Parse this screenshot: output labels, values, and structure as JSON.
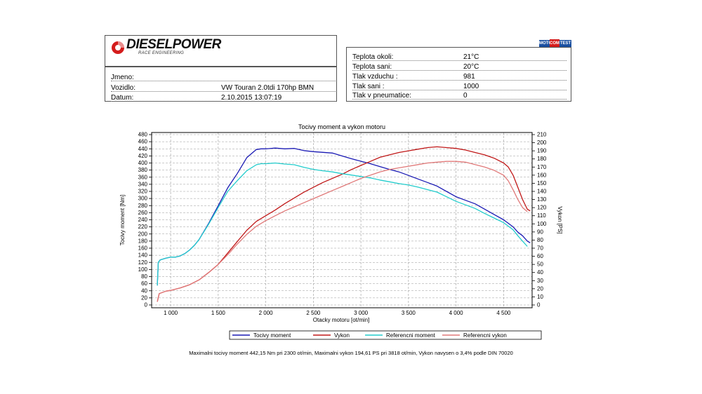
{
  "header": {
    "logo_text": "DIESELPOWER",
    "logo_sub": "RACE ENGINEERING",
    "badge": {
      "left": "MOTO",
      "mid": "COM",
      "right": "TEST"
    }
  },
  "vehicle": {
    "rows": [
      {
        "label": "Jmeno:",
        "value": ""
      },
      {
        "label": "Vozidlo:",
        "value": "VW Touran 2.0tdi 170hp BMN"
      },
      {
        "label": "Datum:",
        "value": "2.10.2015 13:07:19"
      }
    ]
  },
  "conditions": {
    "rows": [
      {
        "label": "Teplota okoli:",
        "value": "21°C"
      },
      {
        "label": "Teplota sani:",
        "value": "20°C"
      },
      {
        "label": "Tlak vzduchu :",
        "value": "981"
      },
      {
        "label": "Tlak sani :",
        "value": "1000"
      },
      {
        "label": "Tlak v pneumatice:",
        "value": "0"
      }
    ]
  },
  "chart_data": {
    "type": "line",
    "title": "Tocivy moment a vykon motoru",
    "xlabel": "Otacky motoru [ot/min]",
    "ylabel": "Tocivy moment [Nm]",
    "y2label": "Vykon [PS]",
    "xlim": [
      800,
      4800
    ],
    "ylim": [
      0,
      480
    ],
    "y2lim": [
      0,
      210
    ],
    "xticks": [
      1000,
      1500,
      2000,
      2500,
      3000,
      3500,
      4000,
      4500
    ],
    "xtick_labels": [
      "1 000",
      "1 500",
      "2 000",
      "2 500",
      "3 000",
      "3 500",
      "4 000",
      "4 500"
    ],
    "yticks": [
      0,
      20,
      40,
      60,
      80,
      100,
      120,
      140,
      160,
      180,
      200,
      220,
      240,
      260,
      280,
      300,
      320,
      340,
      360,
      380,
      400,
      420,
      440,
      460,
      480
    ],
    "y2ticks": [
      0,
      10,
      20,
      30,
      40,
      50,
      60,
      70,
      80,
      90,
      100,
      110,
      120,
      130,
      140,
      150,
      160,
      170,
      180,
      190,
      200,
      210
    ],
    "grid": true,
    "legend_position": "bottom",
    "series": [
      {
        "name": "Tocivy moment",
        "axis": "left",
        "color": "#1a1ab4",
        "x": [
          860,
          870,
          890,
          950,
          1000,
          1050,
          1100,
          1150,
          1200,
          1250,
          1300,
          1400,
          1500,
          1600,
          1700,
          1800,
          1900,
          1950,
          2000,
          2100,
          2200,
          2300,
          2400,
          2500,
          2600,
          2700,
          2800,
          2900,
          3000,
          3100,
          3200,
          3300,
          3400,
          3500,
          3600,
          3700,
          3800,
          3900,
          4000,
          4100,
          4200,
          4300,
          4400,
          4500,
          4600,
          4650,
          4700,
          4750,
          4780
        ],
        "y": [
          55,
          120,
          127,
          132,
          135,
          135,
          138,
          145,
          155,
          168,
          185,
          230,
          280,
          330,
          370,
          415,
          438,
          440,
          440,
          442,
          440,
          441,
          435,
          432,
          430,
          428,
          420,
          412,
          405,
          398,
          390,
          382,
          375,
          365,
          355,
          345,
          335,
          320,
          305,
          295,
          285,
          270,
          255,
          240,
          220,
          205,
          195,
          180,
          175
        ]
      },
      {
        "name": "Vykon",
        "axis": "right",
        "color": "#c01818",
        "x": [
          860,
          880,
          950,
          1000,
          1100,
          1200,
          1300,
          1400,
          1500,
          1600,
          1700,
          1800,
          1900,
          2000,
          2100,
          2200,
          2300,
          2400,
          2500,
          2600,
          2700,
          2800,
          2900,
          3000,
          3100,
          3200,
          3300,
          3400,
          3500,
          3600,
          3700,
          3800,
          3900,
          4000,
          4100,
          4200,
          4300,
          4400,
          4500,
          4550,
          4600,
          4650,
          4700,
          4750,
          4780
        ],
        "y": [
          4,
          14,
          17,
          18,
          21,
          25,
          31,
          40,
          50,
          64,
          78,
          92,
          103,
          110,
          117,
          125,
          132,
          139,
          145,
          151,
          156,
          161,
          167,
          172,
          177,
          182,
          185,
          188,
          190,
          192,
          194,
          195,
          194,
          193,
          191,
          188,
          185,
          181,
          175,
          170,
          160,
          145,
          130,
          118,
          116
        ]
      },
      {
        "name": "Referencni moment",
        "axis": "left",
        "color": "#22cccc",
        "x": [
          860,
          870,
          890,
          950,
          1000,
          1050,
          1100,
          1150,
          1200,
          1250,
          1300,
          1400,
          1500,
          1600,
          1700,
          1800,
          1900,
          1950,
          2000,
          2100,
          2200,
          2300,
          2400,
          2500,
          2600,
          2700,
          2800,
          2900,
          3000,
          3100,
          3200,
          3300,
          3400,
          3500,
          3600,
          3700,
          3800,
          3900,
          4000,
          4100,
          4200,
          4300,
          4400,
          4500,
          4600,
          4650,
          4700,
          4750
        ],
        "y": [
          55,
          120,
          127,
          132,
          135,
          135,
          138,
          145,
          155,
          168,
          185,
          228,
          275,
          320,
          350,
          378,
          395,
          398,
          398,
          400,
          397,
          395,
          388,
          382,
          378,
          375,
          370,
          366,
          362,
          358,
          352,
          347,
          342,
          338,
          332,
          325,
          318,
          305,
          292,
          282,
          272,
          258,
          245,
          232,
          212,
          195,
          180,
          165
        ]
      },
      {
        "name": "Referencni vykon",
        "axis": "right",
        "color": "#e07878",
        "x": [
          860,
          880,
          950,
          1000,
          1100,
          1200,
          1300,
          1400,
          1500,
          1600,
          1700,
          1800,
          1900,
          2000,
          2100,
          2200,
          2300,
          2400,
          2500,
          2600,
          2700,
          2800,
          2900,
          3000,
          3100,
          3200,
          3300,
          3400,
          3500,
          3600,
          3700,
          3800,
          3900,
          4000,
          4100,
          4200,
          4300,
          4400,
          4500,
          4550,
          4600,
          4650,
          4700,
          4750
        ],
        "y": [
          4,
          14,
          17,
          18,
          21,
          25,
          31,
          40,
          50,
          62,
          75,
          87,
          97,
          104,
          110,
          116,
          121,
          126,
          131,
          136,
          141,
          146,
          151,
          156,
          160,
          164,
          167,
          169,
          171,
          173,
          175,
          176,
          177,
          177,
          176,
          173,
          170,
          166,
          160,
          153,
          142,
          130,
          120,
          115
        ]
      }
    ]
  },
  "footer": {
    "text": "Maximalni tocivy moment 442,15 Nm pri 2300 ot/min,  Maximalni vykon 194,61 PS pri 3818 ot/min,  Vykon navysen o 3,4% podle DIN 70020"
  }
}
